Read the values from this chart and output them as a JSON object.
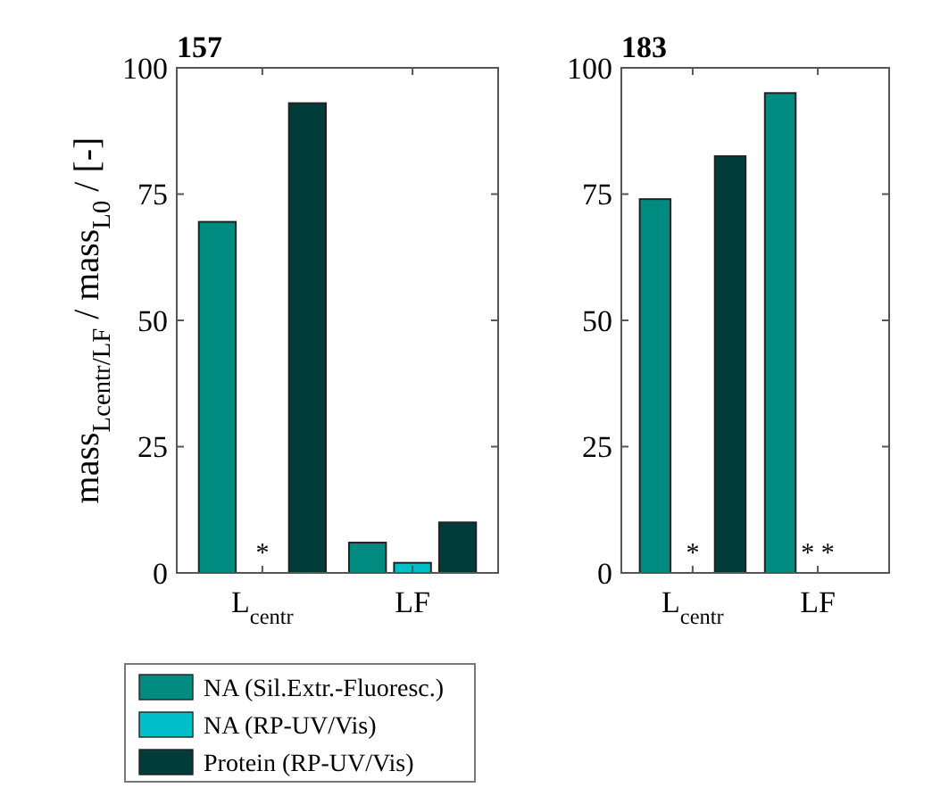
{
  "chart_data": [
    {
      "type": "bar",
      "title": "157",
      "ylabel": "mass$_{Lcentr/LF}$ / mass$_{L0}$ / [-]",
      "categories": [
        "L$_{centr}$",
        "LF"
      ],
      "ylim": [
        0,
        100
      ],
      "yticks": [
        0,
        25,
        50,
        75,
        100
      ],
      "legend": "bottom",
      "series": [
        {
          "name": "NA (Sil.Extr.-Fluoresc.)",
          "color": "#008b80",
          "values": [
            69.5,
            6
          ]
        },
        {
          "name": "NA (RP-UV/Vis)",
          "color": "#00bfc8",
          "values": [
            null,
            2
          ]
        },
        {
          "name": "Protein (RP-UV/Vis)",
          "color": "#003d3a",
          "values": [
            93,
            10
          ]
        }
      ],
      "annotations": [
        "*"
      ]
    },
    {
      "type": "bar",
      "title": "183",
      "categories": [
        "L$_{centr}$",
        "LF"
      ],
      "ylim": [
        0,
        100
      ],
      "yticks": [
        0,
        25,
        50,
        75,
        100
      ],
      "series": [
        {
          "color": "#008b80",
          "values": [
            74,
            95
          ]
        },
        {
          "values": [
            null,
            null
          ]
        },
        {
          "color": "#003d3a",
          "values": [
            82.5,
            null
          ]
        }
      ],
      "annotations": [
        "*",
        "* *"
      ]
    }
  ]
}
